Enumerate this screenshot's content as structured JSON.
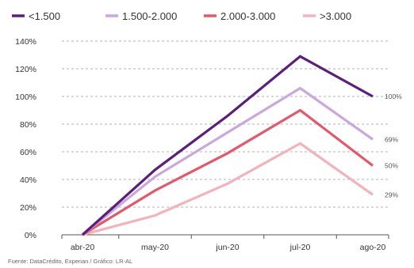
{
  "chart_data": {
    "type": "line",
    "title": "",
    "xlabel": "",
    "ylabel": "",
    "categories": [
      "abr-20",
      "may-20",
      "jun-20",
      "jul-20",
      "ago-20"
    ],
    "ylim": [
      0,
      140
    ],
    "yticks": [
      0,
      20,
      40,
      60,
      80,
      100,
      120,
      140
    ],
    "ytick_labels": [
      "0%",
      "20%",
      "40%",
      "60%",
      "80%",
      "100%",
      "120%",
      "140%"
    ],
    "grid": true,
    "legend_position": "top-left",
    "series": [
      {
        "name": "<1.500",
        "color": "#5b1f7a",
        "values": [
          0,
          47,
          86,
          129,
          100
        ],
        "end_label": "100%"
      },
      {
        "name": "1.500-2.000",
        "color": "#c9a8da",
        "values": [
          0,
          42,
          74,
          106,
          69
        ],
        "end_label": "69%"
      },
      {
        "name": "2.000-3.000",
        "color": "#e5576a",
        "values": [
          0,
          32,
          59,
          90,
          50
        ],
        "end_label": "50%"
      },
      {
        "name": ">3.000",
        "color": "#f2b3bb",
        "values": [
          0,
          14,
          37,
          66,
          29
        ],
        "end_label": "29%"
      }
    ],
    "source": "Fuente: DataCrédito, Experian / Gráfico: LR-AL"
  }
}
